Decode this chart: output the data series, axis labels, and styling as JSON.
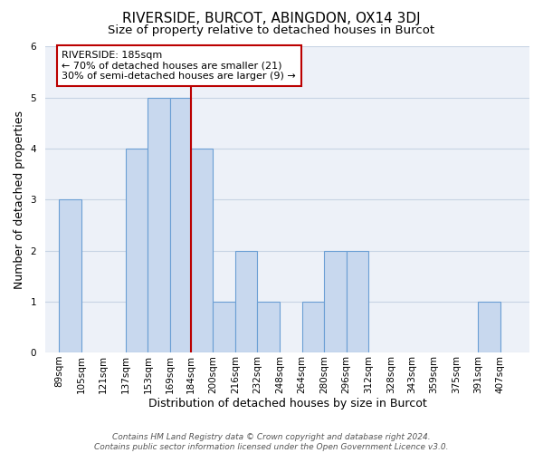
{
  "title": "RIVERSIDE, BURCOT, ABINGDON, OX14 3DJ",
  "subtitle": "Size of property relative to detached houses in Burcot",
  "xlabel": "Distribution of detached houses by size in Burcot",
  "ylabel": "Number of detached properties",
  "bin_labels": [
    "89sqm",
    "105sqm",
    "121sqm",
    "137sqm",
    "153sqm",
    "169sqm",
    "184sqm",
    "200sqm",
    "216sqm",
    "232sqm",
    "248sqm",
    "264sqm",
    "280sqm",
    "296sqm",
    "312sqm",
    "328sqm",
    "343sqm",
    "359sqm",
    "375sqm",
    "391sqm",
    "407sqm"
  ],
  "bin_edges": [
    89,
    105,
    121,
    137,
    153,
    169,
    184,
    200,
    216,
    232,
    248,
    264,
    280,
    296,
    312,
    328,
    343,
    359,
    375,
    391,
    407
  ],
  "counts": [
    3,
    0,
    0,
    4,
    5,
    5,
    4,
    1,
    2,
    1,
    0,
    1,
    2,
    2,
    0,
    0,
    0,
    0,
    0,
    1,
    0
  ],
  "bar_color": "#c8d8ee",
  "bar_edge_color": "#6b9fd4",
  "vline_x": 184,
  "vline_color": "#bb0000",
  "annotation_line1": "RIVERSIDE: 185sqm",
  "annotation_line2": "← 70% of detached houses are smaller (21)",
  "annotation_line3": "30% of semi-detached houses are larger (9) →",
  "annotation_box_edgecolor": "#bb0000",
  "ylim": [
    0,
    6
  ],
  "yticks": [
    0,
    1,
    2,
    3,
    4,
    5,
    6
  ],
  "grid_color": "#c8d4e4",
  "bg_color": "#edf1f8",
  "footer_line1": "Contains HM Land Registry data © Crown copyright and database right 2024.",
  "footer_line2": "Contains public sector information licensed under the Open Government Licence v3.0.",
  "title_fontsize": 11,
  "subtitle_fontsize": 9.5,
  "axis_label_fontsize": 9,
  "tick_fontsize": 7.5,
  "annotation_fontsize": 8,
  "footer_fontsize": 6.5
}
